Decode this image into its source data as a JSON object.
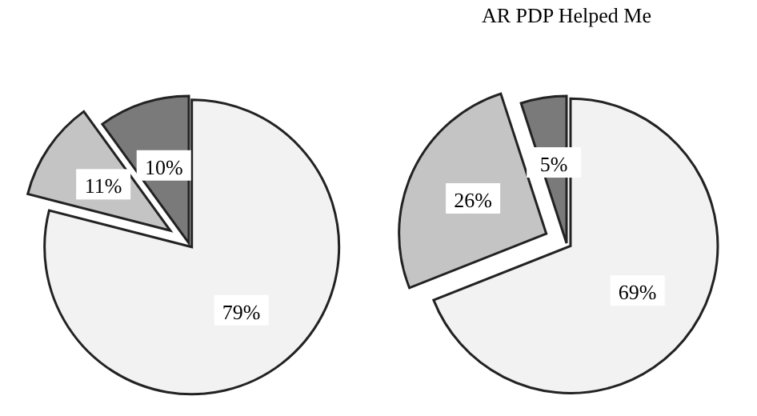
{
  "chart_data": [
    {
      "type": "pie",
      "categories": [
        null,
        null,
        null
      ],
      "values": [
        79,
        11,
        10
      ],
      "colors": [
        "#f2f2f2",
        "#c4c4c4",
        "#7a7a7a"
      ],
      "value_labels": [
        "79%",
        "11%",
        "10%"
      ]
    },
    {
      "type": "pie",
      "title": "AR PDP Helped Me",
      "categories": [
        null,
        null,
        null
      ],
      "values": [
        69,
        26,
        5
      ],
      "colors": [
        "#f2f2f2",
        "#c4c4c4",
        "#7a7a7a"
      ],
      "value_labels": [
        "69%",
        "26%",
        "5%"
      ]
    }
  ]
}
